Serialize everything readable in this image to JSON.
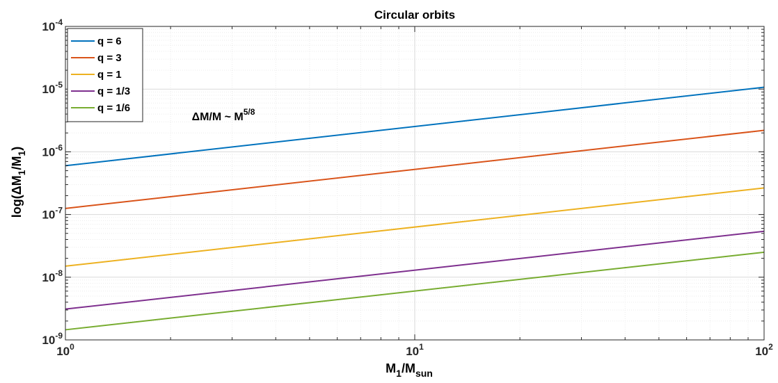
{
  "chart_data": {
    "type": "line",
    "title": "Circular orbits",
    "xlabel": {
      "base": "M",
      "sub1": "1",
      "mid": "/M",
      "sub2": "sun"
    },
    "ylabel": {
      "prefix": "log(",
      "delta": "Δ",
      "m1": "M",
      "sub1": "1",
      "mid": "/M",
      "sub2": "1",
      "suffix": ")"
    },
    "x_scale": "log",
    "y_scale": "log",
    "xlim": [
      1,
      100
    ],
    "ylim": [
      1e-09,
      0.0001
    ],
    "grid": true,
    "legend_position": "top-left",
    "x_ticks": [
      {
        "base": "10",
        "exp": "0"
      },
      {
        "base": "10",
        "exp": "1"
      },
      {
        "base": "10",
        "exp": "2"
      }
    ],
    "y_ticks": [
      {
        "base": "10",
        "exp": "-9"
      },
      {
        "base": "10",
        "exp": "-8"
      },
      {
        "base": "10",
        "exp": "-7"
      },
      {
        "base": "10",
        "exp": "-6"
      },
      {
        "base": "10",
        "exp": "-5"
      },
      {
        "base": "10",
        "exp": "-4"
      }
    ],
    "annotation": {
      "main": "ΔM/M ~ M",
      "sup": "5/8",
      "x": 2.3,
      "y": 3.2e-06
    },
    "series": [
      {
        "name": "q = 6",
        "color": "#0072BD",
        "x": [
          1,
          100
        ],
        "y": [
          6e-07,
          1.07e-05
        ]
      },
      {
        "name": "q = 3",
        "color": "#D95319",
        "x": [
          1,
          100
        ],
        "y": [
          1.25e-07,
          2.2e-06
        ]
      },
      {
        "name": "q = 1",
        "color": "#EDB120",
        "x": [
          1,
          100
        ],
        "y": [
          1.5e-08,
          2.65e-07
        ]
      },
      {
        "name": "q = 1/3",
        "color": "#7E2F8E",
        "x": [
          1,
          100
        ],
        "y": [
          3.1e-09,
          5.4e-08
        ]
      },
      {
        "name": "q = 1/6",
        "color": "#77AC30",
        "x": [
          1,
          100
        ],
        "y": [
          1.45e-09,
          2.5e-08
        ]
      }
    ]
  }
}
